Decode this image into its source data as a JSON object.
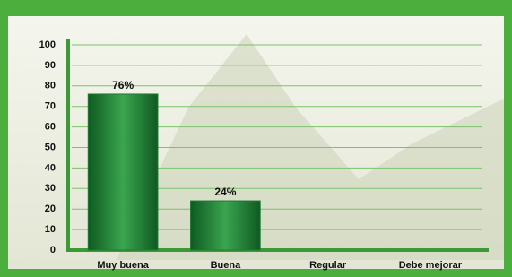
{
  "chart_data": {
    "type": "bar",
    "categories": [
      "Muy buena",
      "Buena",
      "Regular",
      "Debe mejorar"
    ],
    "values": [
      76,
      24,
      0,
      0
    ],
    "value_labels": [
      "76%",
      "24%",
      null,
      null
    ],
    "color": "#1f7a35",
    "ylim": [
      0,
      100
    ],
    "yticks": [
      0,
      10,
      20,
      30,
      40,
      50,
      60,
      70,
      80,
      90,
      100
    ],
    "grid": true
  }
}
